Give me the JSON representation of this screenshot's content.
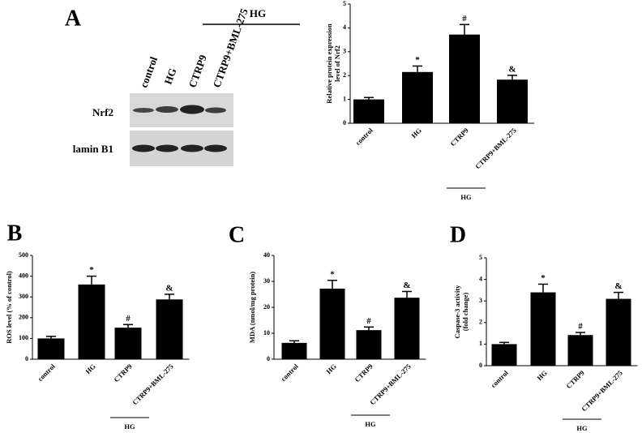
{
  "blot": {
    "lanes": [
      "control",
      "HG",
      "CTRP9",
      "CTRP9+BML-275"
    ],
    "group_label": "HG",
    "rows": [
      "Nrf2",
      "lamin B1"
    ]
  },
  "chart_data": [
    {
      "type": "bar",
      "panel": "A",
      "ylabel": [
        "Relative protein expression",
        "level of Nrf2"
      ],
      "categories": [
        "control",
        "HG",
        "CTRP9",
        "CTRP9+BML-275"
      ],
      "values": [
        1.0,
        2.15,
        3.72,
        1.83
      ],
      "errors": [
        0.08,
        0.25,
        0.42,
        0.18
      ],
      "significance": [
        null,
        "*",
        "#",
        "&"
      ],
      "group_label": "HG",
      "color": "#000000",
      "ylim": [
        0,
        5
      ],
      "yticks": [
        0,
        1,
        2,
        3,
        4,
        5
      ]
    },
    {
      "type": "bar",
      "panel": "B",
      "ylabel": [
        "ROS level (% of control)"
      ],
      "categories": [
        "control",
        "HG",
        "CTRP9",
        "CTRP9+BML-275"
      ],
      "values": [
        100,
        360,
        152,
        288
      ],
      "errors": [
        10,
        40,
        15,
        25
      ],
      "significance": [
        null,
        "*",
        "#",
        "&"
      ],
      "group_label": "HG",
      "color": "#000000",
      "ylim": [
        0,
        500
      ],
      "yticks": [
        0,
        100,
        200,
        300,
        400,
        500
      ]
    },
    {
      "type": "bar",
      "panel": "C",
      "ylabel": [
        "MDA (nmol/mg protein)"
      ],
      "categories": [
        "control",
        "HG",
        "CTRP9",
        "CTRP9+BML-275"
      ],
      "values": [
        6.3,
        27.2,
        11.2,
        23.7
      ],
      "errors": [
        0.8,
        3.2,
        1.2,
        2.4
      ],
      "significance": [
        null,
        "*",
        "#",
        "&"
      ],
      "group_label": "HG",
      "color": "#000000",
      "ylim": [
        0,
        40
      ],
      "yticks": [
        0,
        10,
        20,
        30,
        40
      ]
    },
    {
      "type": "bar",
      "panel": "D",
      "ylabel": [
        "Caspase-3 activity",
        "(fold change)"
      ],
      "categories": [
        "control",
        "HG",
        "CTRP9",
        "CTRP9+BML-275"
      ],
      "values": [
        1.0,
        3.4,
        1.42,
        3.1
      ],
      "errors": [
        0.08,
        0.38,
        0.12,
        0.3
      ],
      "significance": [
        null,
        "*",
        "#",
        "&"
      ],
      "group_label": "HG",
      "color": "#000000",
      "ylim": [
        0,
        5
      ],
      "yticks": [
        0,
        1,
        2,
        3,
        4,
        5
      ]
    }
  ]
}
